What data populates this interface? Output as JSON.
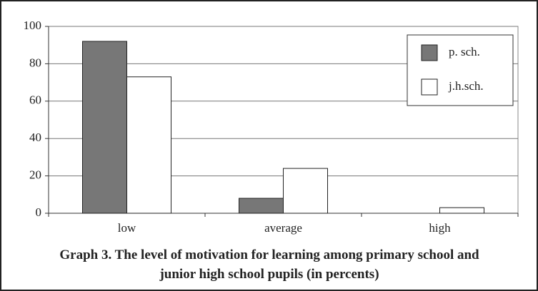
{
  "chart_data": {
    "type": "bar",
    "title": "Graph 3. The level of motivation for learning among primary school and junior high school pupils (in percents)",
    "categories": [
      "low",
      "average",
      "high"
    ],
    "series": [
      {
        "name": "p. sch.",
        "color": "#777777",
        "values": [
          92,
          8,
          0
        ]
      },
      {
        "name": "j.h.sch.",
        "color": "#ffffff",
        "values": [
          73,
          24,
          3
        ]
      }
    ],
    "ylim": [
      0,
      100
    ],
    "yticks": [
      0,
      20,
      40,
      60,
      80,
      100
    ],
    "grid": true,
    "legend": "upper right"
  }
}
